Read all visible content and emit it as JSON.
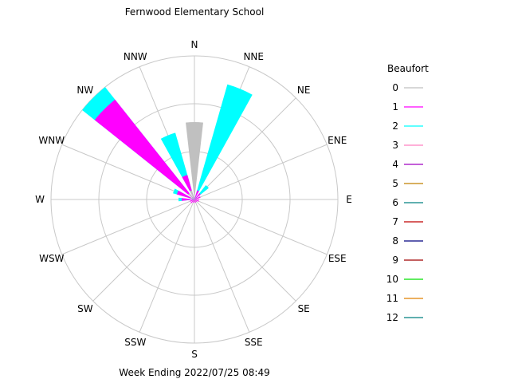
{
  "chart_data": {
    "type": "wind-rose",
    "title": "Fernwood Elementary School",
    "footer": "Week Ending 2022/07/25 08:49",
    "directions": [
      "N",
      "NNE",
      "NE",
      "ENE",
      "E",
      "ESE",
      "SE",
      "SSE",
      "S",
      "SSW",
      "SW",
      "WSW",
      "W",
      "WNW",
      "NW",
      "NNW"
    ],
    "grid_rings": 3,
    "legend": {
      "title": "Beaufort",
      "entries": [
        {
          "label": "0",
          "color": "#c0c0c0"
        },
        {
          "label": "1",
          "color": "#ff00ff"
        },
        {
          "label": "2",
          "color": "#00ffff"
        },
        {
          "label": "3",
          "color": "#ff80c0"
        },
        {
          "label": "4",
          "color": "#a000c0"
        },
        {
          "label": "5",
          "color": "#c08000"
        },
        {
          "label": "6",
          "color": "#008080"
        },
        {
          "label": "7",
          "color": "#c00000"
        },
        {
          "label": "8",
          "color": "#000080"
        },
        {
          "label": "9",
          "color": "#a00000"
        },
        {
          "label": "10",
          "color": "#00e000"
        },
        {
          "label": "11",
          "color": "#e08000"
        },
        {
          "label": "12",
          "color": "#008080"
        }
      ]
    },
    "max_value": 180,
    "sectors": [
      {
        "dir": "N",
        "segments": [
          {
            "beaufort": 0,
            "value": 97
          }
        ]
      },
      {
        "dir": "NNE",
        "segments": [
          {
            "beaufort": 1,
            "value": 12
          },
          {
            "beaufort": 2,
            "value": 138
          }
        ]
      },
      {
        "dir": "NE",
        "segments": [
          {
            "beaufort": 1,
            "value": 10
          },
          {
            "beaufort": 2,
            "value": 13
          }
        ]
      },
      {
        "dir": "ENE",
        "segments": [
          {
            "beaufort": 1,
            "value": 8
          }
        ]
      },
      {
        "dir": "E",
        "segments": [
          {
            "beaufort": 1,
            "value": 6
          }
        ]
      },
      {
        "dir": "ESE",
        "segments": [
          {
            "beaufort": 1,
            "value": 6
          }
        ]
      },
      {
        "dir": "SE",
        "segments": [
          {
            "beaufort": 1,
            "value": 4
          }
        ]
      },
      {
        "dir": "SSE",
        "segments": [
          {
            "beaufort": 1,
            "value": 4
          }
        ]
      },
      {
        "dir": "S",
        "segments": [
          {
            "beaufort": 1,
            "value": 4
          }
        ]
      },
      {
        "dir": "SSW",
        "segments": [
          {
            "beaufort": 1,
            "value": 4
          }
        ]
      },
      {
        "dir": "SW",
        "segments": [
          {
            "beaufort": 1,
            "value": 6
          }
        ]
      },
      {
        "dir": "WSW",
        "segments": [
          {
            "beaufort": 1,
            "value": 6
          }
        ]
      },
      {
        "dir": "W",
        "segments": [
          {
            "beaufort": 1,
            "value": 16
          },
          {
            "beaufort": 2,
            "value": 4
          }
        ]
      },
      {
        "dir": "WNW",
        "segments": [
          {
            "beaufort": 0,
            "value": 5
          },
          {
            "beaufort": 1,
            "value": 18
          },
          {
            "beaufort": 2,
            "value": 5
          }
        ]
      },
      {
        "dir": "NW",
        "segments": [
          {
            "beaufort": 0,
            "value": 10
          },
          {
            "beaufort": 1,
            "value": 150
          },
          {
            "beaufort": 2,
            "value": 20
          }
        ]
      },
      {
        "dir": "NNW",
        "segments": [
          {
            "beaufort": 0,
            "value": 12
          },
          {
            "beaufort": 1,
            "value": 20
          },
          {
            "beaufort": 2,
            "value": 55
          }
        ]
      }
    ]
  }
}
